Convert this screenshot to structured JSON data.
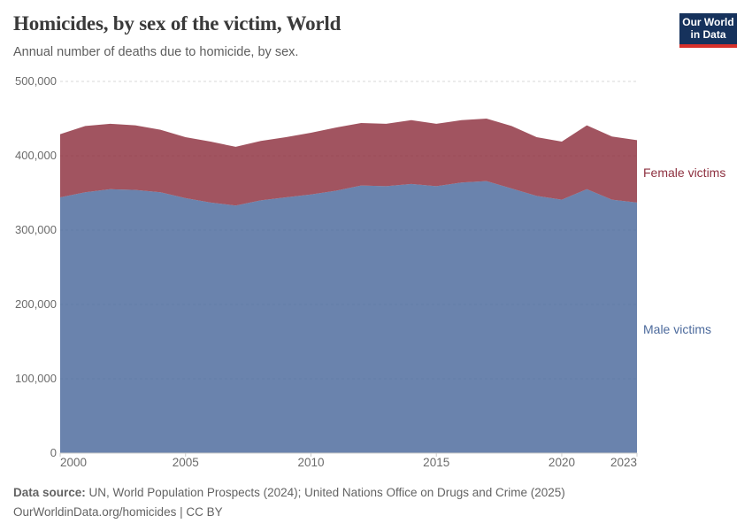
{
  "header": {
    "title": "Homicides, by sex of the victim, World",
    "subtitle": "Annual number of deaths due to homicide, by sex."
  },
  "logo": {
    "line1": "Our World",
    "line2": "in Data",
    "bg_color": "#16325C",
    "accent_color": "#D7302A"
  },
  "legend": {
    "female_label": "Female victims",
    "male_label": "Male victims"
  },
  "footer": {
    "source_label": "Data source:",
    "source_text": "UN, World Population Prospects (2024); United Nations Office on Drugs and Crime (2025)",
    "citation": "OurWorldinData.org/homicides | CC BY"
  },
  "colors": {
    "male_series": "#4C6A9C",
    "female_series": "#8E3140",
    "gridline": "#d7d7d7",
    "axis": "#cccccc"
  },
  "chart_data": {
    "type": "area",
    "stacked": true,
    "title": "Homicides, by sex of the victim, World",
    "subtitle": "Annual number of deaths due to homicide, by sex.",
    "xlabel": "",
    "ylabel": "",
    "grid": "dashed-horizontal",
    "legend_position": "right-inline",
    "ylim": [
      0,
      500000
    ],
    "yticks": [
      0,
      100000,
      200000,
      300000,
      400000,
      500000
    ],
    "xticks": [
      2000,
      2005,
      2010,
      2015,
      2020,
      2023
    ],
    "x": [
      2000,
      2001,
      2002,
      2003,
      2004,
      2005,
      2006,
      2007,
      2008,
      2009,
      2010,
      2011,
      2012,
      2013,
      2014,
      2015,
      2016,
      2017,
      2018,
      2019,
      2020,
      2021,
      2022,
      2023
    ],
    "series": [
      {
        "name": "Male victims",
        "color": "#4C6A9C",
        "values": [
          344000,
          351000,
          355000,
          354000,
          351000,
          343000,
          337000,
          333000,
          340000,
          344000,
          348000,
          353000,
          360000,
          359000,
          362000,
          359000,
          364000,
          366000,
          356000,
          346000,
          341000,
          355000,
          341000,
          337000
        ]
      },
      {
        "name": "Female victims",
        "color": "#8E3140",
        "values": [
          85000,
          89000,
          88000,
          87000,
          84000,
          82000,
          82000,
          79000,
          80000,
          81000,
          83000,
          85000,
          84000,
          84000,
          86000,
          84000,
          84000,
          84000,
          84000,
          79000,
          78000,
          86000,
          85000,
          84000
        ]
      }
    ]
  }
}
